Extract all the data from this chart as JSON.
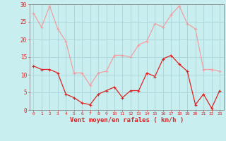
{
  "x": [
    0,
    1,
    2,
    3,
    4,
    5,
    6,
    7,
    8,
    9,
    10,
    11,
    12,
    13,
    14,
    15,
    16,
    17,
    18,
    19,
    20,
    21,
    22,
    23
  ],
  "wind_avg": [
    12.5,
    11.5,
    11.5,
    10.5,
    4.5,
    3.5,
    2.0,
    1.5,
    4.5,
    5.5,
    6.5,
    3.5,
    5.5,
    5.5,
    10.5,
    9.5,
    14.5,
    15.5,
    13.0,
    11.0,
    1.5,
    4.5,
    0.5,
    5.5
  ],
  "wind_gust": [
    27.5,
    23.5,
    29.5,
    23.0,
    19.5,
    10.5,
    10.5,
    7.0,
    10.5,
    11.0,
    15.5,
    15.5,
    15.0,
    18.5,
    19.5,
    24.5,
    23.5,
    27.0,
    29.5,
    24.5,
    23.0,
    11.5,
    11.5,
    11.0
  ],
  "xlabel": "Vent moyen/en rafales ( km/h )",
  "ylim": [
    0,
    30
  ],
  "xlim_min": -0.5,
  "xlim_max": 23.5,
  "yticks": [
    0,
    5,
    10,
    15,
    20,
    25,
    30
  ],
  "xticks": [
    0,
    1,
    2,
    3,
    4,
    5,
    6,
    7,
    8,
    9,
    10,
    11,
    12,
    13,
    14,
    15,
    16,
    17,
    18,
    19,
    20,
    21,
    22,
    23
  ],
  "avg_color": "#dd2222",
  "gust_color": "#f0a0a0",
  "bg_color": "#c8eef0",
  "grid_color": "#aad4d8",
  "xlabel_color": "#dd2222",
  "tick_color": "#dd2222",
  "spine_color": "#888888"
}
